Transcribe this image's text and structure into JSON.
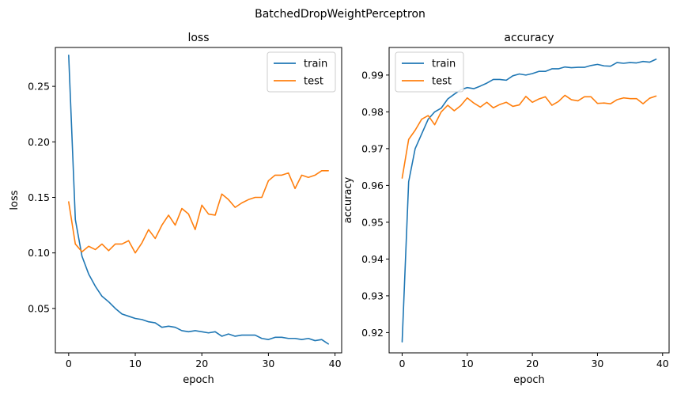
{
  "figure_title": "BatchedDropWeightPerceptron",
  "colors": {
    "train": "#1f77b4",
    "test": "#ff7f0e"
  },
  "chart_data": [
    {
      "type": "line",
      "title": "loss",
      "xlabel": "epoch",
      "ylabel": "loss",
      "xlim": [
        -2,
        41
      ],
      "ylim": [
        0.01,
        0.285
      ],
      "xticks": [
        0,
        10,
        20,
        30,
        40
      ],
      "yticks": [
        0.05,
        0.1,
        0.15,
        0.2,
        0.25
      ],
      "ytick_labels": [
        "0.05",
        "0.10",
        "0.15",
        "0.20",
        "0.25"
      ],
      "legend_position": "upper right",
      "grid": false,
      "x": [
        0,
        1,
        2,
        3,
        4,
        5,
        6,
        7,
        8,
        9,
        10,
        11,
        12,
        13,
        14,
        15,
        16,
        17,
        18,
        19,
        20,
        21,
        22,
        23,
        24,
        25,
        26,
        27,
        28,
        29,
        30,
        31,
        32,
        33,
        34,
        35,
        36,
        37,
        38,
        39
      ],
      "series": [
        {
          "name": "train",
          "color_key": "train",
          "values": [
            0.278,
            0.13,
            0.097,
            0.081,
            0.07,
            0.061,
            0.056,
            0.05,
            0.045,
            0.043,
            0.041,
            0.04,
            0.038,
            0.037,
            0.033,
            0.034,
            0.033,
            0.03,
            0.029,
            0.03,
            0.029,
            0.028,
            0.029,
            0.025,
            0.027,
            0.025,
            0.026,
            0.026,
            0.026,
            0.023,
            0.022,
            0.024,
            0.024,
            0.023,
            0.023,
            0.022,
            0.023,
            0.021,
            0.022,
            0.018
          ]
        },
        {
          "name": "test",
          "color_key": "test",
          "values": [
            0.146,
            0.108,
            0.101,
            0.106,
            0.103,
            0.108,
            0.102,
            0.108,
            0.108,
            0.111,
            0.1,
            0.109,
            0.121,
            0.113,
            0.125,
            0.134,
            0.125,
            0.14,
            0.135,
            0.121,
            0.143,
            0.135,
            0.134,
            0.153,
            0.148,
            0.141,
            0.145,
            0.148,
            0.15,
            0.15,
            0.165,
            0.17,
            0.17,
            0.172,
            0.158,
            0.17,
            0.168,
            0.17,
            0.174,
            0.174
          ]
        }
      ]
    },
    {
      "type": "line",
      "title": "accuracy",
      "xlabel": "epoch",
      "ylabel": "accuracy",
      "xlim": [
        -2,
        41
      ],
      "ylim": [
        0.9145,
        0.9975
      ],
      "xticks": [
        0,
        10,
        20,
        30,
        40
      ],
      "yticks": [
        0.92,
        0.93,
        0.94,
        0.95,
        0.96,
        0.97,
        0.98,
        0.99
      ],
      "ytick_labels": [
        "0.92",
        "0.93",
        "0.94",
        "0.95",
        "0.96",
        "0.97",
        "0.98",
        "0.99"
      ],
      "legend_position": "upper left",
      "grid": false,
      "x": [
        0,
        1,
        2,
        3,
        4,
        5,
        6,
        7,
        8,
        9,
        10,
        11,
        12,
        13,
        14,
        15,
        16,
        17,
        18,
        19,
        20,
        21,
        22,
        23,
        24,
        25,
        26,
        27,
        28,
        29,
        30,
        31,
        32,
        33,
        34,
        35,
        36,
        37,
        38,
        39
      ],
      "series": [
        {
          "name": "train",
          "color_key": "train",
          "values": [
            0.9175,
            0.961,
            0.97,
            0.974,
            0.978,
            0.98,
            0.981,
            0.9835,
            0.9848,
            0.986,
            0.9866,
            0.9863,
            0.987,
            0.9878,
            0.9888,
            0.9888,
            0.9886,
            0.9898,
            0.9903,
            0.99,
            0.9904,
            0.991,
            0.991,
            0.9917,
            0.9917,
            0.9922,
            0.992,
            0.9921,
            0.9921,
            0.9926,
            0.9929,
            0.9925,
            0.9924,
            0.9934,
            0.9932,
            0.9934,
            0.9933,
            0.9937,
            0.9935,
            0.9943
          ]
        },
        {
          "name": "test",
          "color_key": "test",
          "values": [
            0.962,
            0.9725,
            0.975,
            0.978,
            0.979,
            0.9765,
            0.98,
            0.9818,
            0.9803,
            0.9817,
            0.9838,
            0.9824,
            0.9813,
            0.9826,
            0.9811,
            0.982,
            0.9826,
            0.9815,
            0.9819,
            0.9842,
            0.9826,
            0.9835,
            0.9841,
            0.9818,
            0.9828,
            0.9845,
            0.9833,
            0.983,
            0.9841,
            0.9841,
            0.9823,
            0.9824,
            0.9822,
            0.9833,
            0.9838,
            0.9836,
            0.9836,
            0.9822,
            0.9837,
            0.9843
          ]
        }
      ]
    }
  ]
}
